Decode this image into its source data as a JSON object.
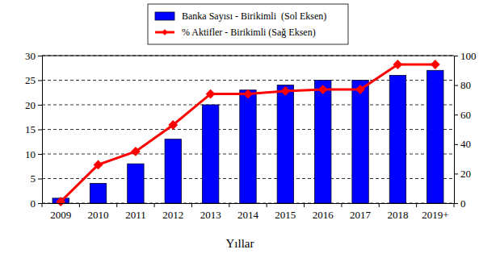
{
  "chart_data": {
    "type": "bar",
    "categories": [
      "2009",
      "2010",
      "2011",
      "2012",
      "2013",
      "2014",
      "2015",
      "2016",
      "2017",
      "2018",
      "2019+"
    ],
    "series": [
      {
        "name": "Banka Sayısı - Birikimli  (Sol Eksen)",
        "type": "bar",
        "color": "#0000ff",
        "values": [
          1,
          4,
          8,
          13,
          20,
          23,
          24,
          25,
          25,
          26,
          27
        ]
      },
      {
        "name": "% Aktifler - Birikimli (Sağ Eksen)",
        "type": "line",
        "axis": "y2",
        "color": "#ff0000",
        "marker": "diamond",
        "values": [
          1,
          26,
          35,
          53,
          74,
          74,
          76,
          77,
          77,
          94,
          94
        ]
      }
    ],
    "xlabel": "Yıllar",
    "ylim": [
      0,
      30
    ],
    "yticks": [
      0,
      5,
      10,
      15,
      20,
      25,
      30
    ],
    "y2lim": [
      0,
      100
    ],
    "y2ticks": [
      0,
      20,
      40,
      60,
      80,
      100
    ],
    "grid": true,
    "legend": "top"
  }
}
